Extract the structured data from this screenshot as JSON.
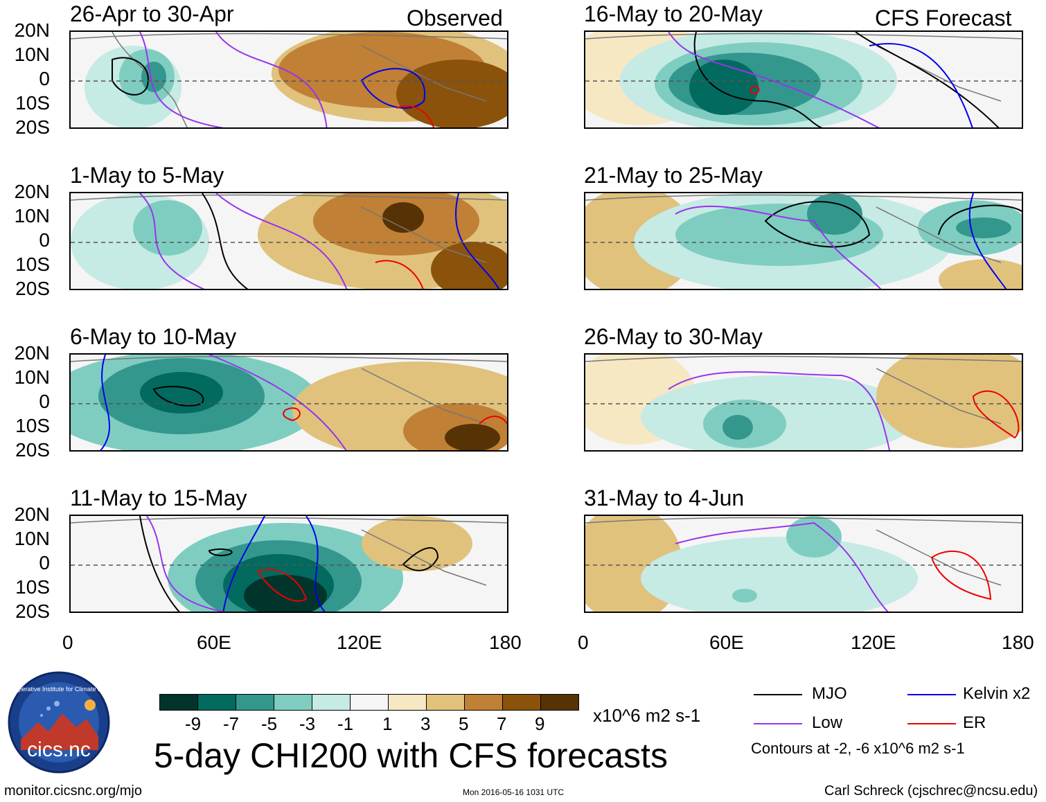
{
  "left_column_label": "Observed",
  "right_column_label": "CFS Forecast",
  "lat_labels": [
    "20N",
    "10N",
    "0",
    "10S",
    "20S"
  ],
  "lon_labels": [
    "0",
    "60E",
    "120E",
    "180"
  ],
  "panels_left": [
    {
      "title": "26-Apr to 30-Apr"
    },
    {
      "title": "1-May to 5-May"
    },
    {
      "title": "6-May to 10-May"
    },
    {
      "title": "11-May to 15-May"
    }
  ],
  "panels_right": [
    {
      "title": "16-May to 20-May"
    },
    {
      "title": "21-May to 25-May"
    },
    {
      "title": "26-May to 30-May"
    },
    {
      "title": "31-May to 4-Jun"
    }
  ],
  "colorbar": {
    "colors": [
      "#01352b",
      "#026a5e",
      "#33978e",
      "#7fcdc1",
      "#c6eae4",
      "#f5f5f5",
      "#f5e8c3",
      "#e0c27d",
      "#c08035",
      "#8b520b",
      "#573205"
    ],
    "tick_labels": [
      "-9",
      "-7",
      "-5",
      "-3",
      "-1",
      "1",
      "3",
      "5",
      "7",
      "9"
    ],
    "units": "x10^6 m2 s-1"
  },
  "main_title": "5-day CHI200 with CFS forecasts",
  "legend": {
    "items": [
      {
        "label": "MJO",
        "color": "#000000"
      },
      {
        "label": "Kelvin x2",
        "color": "#0000ee"
      },
      {
        "label": "Low",
        "color": "#9933ee"
      },
      {
        "label": "ER",
        "color": "#ee0000"
      }
    ],
    "contour_note": "Contours at -2, -6 x10^6 m2 s-1"
  },
  "logo_text": "cics.nc",
  "logo_ring_text": "Cooperative Institute for Climate and Satellites",
  "footer": {
    "url": "monitor.cicsnc.org/mjo",
    "timestamp": "Mon 2016-05-16 1031 UTC",
    "author": "Carl Schreck (cjschrec@ncsu.edu)"
  }
}
